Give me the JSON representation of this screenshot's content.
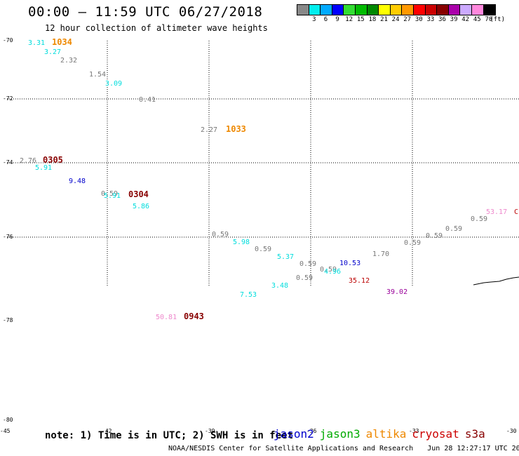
{
  "header": {
    "title": "00:00 – 11:59 UTC 06/27/2018",
    "subtitle": "12 hour collection of altimeter wave heights"
  },
  "legend": {
    "unit": "(ft)",
    "swatches": [
      "#888888",
      "#00eeee",
      "#00aaff",
      "#0000ff",
      "#33dd33",
      "#00bb00",
      "#008800",
      "#ffff00",
      "#ffcc00",
      "#ff9900",
      "#ff0000",
      "#cc0000",
      "#880000",
      "#aa00aa",
      "#ccaaff",
      "#ff88dd",
      "#000000"
    ],
    "labels": [
      "3",
      "6",
      "9",
      "12",
      "15",
      "18",
      "21",
      "24",
      "27",
      "30",
      "33",
      "36",
      "39",
      "42",
      "45",
      "70"
    ]
  },
  "map": {
    "lat_labels": [
      "-70",
      "-72",
      "-74",
      "-76",
      "-78",
      "-80"
    ],
    "lon_labels": [
      "-45",
      "-42",
      "-39",
      "-36",
      "-33",
      "-30"
    ],
    "grid": true,
    "colors": {
      "gray": "#777777",
      "cyan": "#00dddd",
      "blue": "#0000cc",
      "orange": "#ee8800",
      "darkred": "#880000",
      "red": "#bb0000",
      "purple": "#990099",
      "pink": "#ee88cc"
    },
    "observations": [
      {
        "text": "3.31",
        "color": "cyan"
      },
      {
        "text": "1034",
        "color": "orange",
        "pass": true
      },
      {
        "text": "3.27",
        "color": "cyan"
      },
      {
        "text": "2.32",
        "color": "gray"
      },
      {
        "text": "1.54",
        "color": "gray"
      },
      {
        "text": "3.09",
        "color": "cyan"
      },
      {
        "text": "0.41",
        "color": "gray"
      },
      {
        "text": "2.27",
        "color": "gray"
      },
      {
        "text": "1033",
        "color": "orange",
        "pass": true
      },
      {
        "text": "2.76",
        "color": "gray"
      },
      {
        "text": "0305",
        "color": "darkred",
        "pass": true
      },
      {
        "text": "5.91",
        "color": "cyan"
      },
      {
        "text": "9.48",
        "color": "blue"
      },
      {
        "text": "0.59",
        "color": "gray"
      },
      {
        "text": "5.91",
        "color": "cyan"
      },
      {
        "text": "0304",
        "color": "darkred",
        "pass": true
      },
      {
        "text": "5.86",
        "color": "cyan"
      },
      {
        "text": "0.59",
        "color": "gray"
      },
      {
        "text": "5.98",
        "color": "cyan"
      },
      {
        "text": "0.59",
        "color": "gray"
      },
      {
        "text": "5.37",
        "color": "cyan"
      },
      {
        "text": "0.59",
        "color": "gray"
      },
      {
        "text": "0.59",
        "color": "gray"
      },
      {
        "text": "4.96",
        "color": "cyan"
      },
      {
        "text": "10.53",
        "color": "blue"
      },
      {
        "text": "1.70",
        "color": "gray"
      },
      {
        "text": "0.59",
        "color": "gray"
      },
      {
        "text": "0.59",
        "color": "gray"
      },
      {
        "text": "0.59",
        "color": "gray"
      },
      {
        "text": "0.59",
        "color": "gray"
      },
      {
        "text": "53.17",
        "color": "pink"
      },
      {
        "text": "C",
        "color": "red"
      },
      {
        "text": "0.59",
        "color": "gray"
      },
      {
        "text": "3.48",
        "color": "cyan"
      },
      {
        "text": "35.12",
        "color": "red"
      },
      {
        "text": "7.53",
        "color": "cyan"
      },
      {
        "text": "39.02",
        "color": "purple"
      },
      {
        "text": "50.81",
        "color": "pink"
      },
      {
        "text": "0943",
        "color": "darkred",
        "pass": true
      }
    ]
  },
  "footer": {
    "note": "note: 1) Time is in UTC; 2) SWH is in feet",
    "satellites": [
      {
        "name": "jason2",
        "color": "#0000cc"
      },
      {
        "name": "jason3",
        "color": "#00aa00"
      },
      {
        "name": "altika",
        "color": "#ee8800"
      },
      {
        "name": "cryosat",
        "color": "#cc0000"
      },
      {
        "name": "s3a",
        "color": "#880000"
      }
    ],
    "credit": "NOAA/NESDIS Center for Satellite Applications and Research",
    "generated": "Jun 28 12:27:17 UTC 2018"
  }
}
